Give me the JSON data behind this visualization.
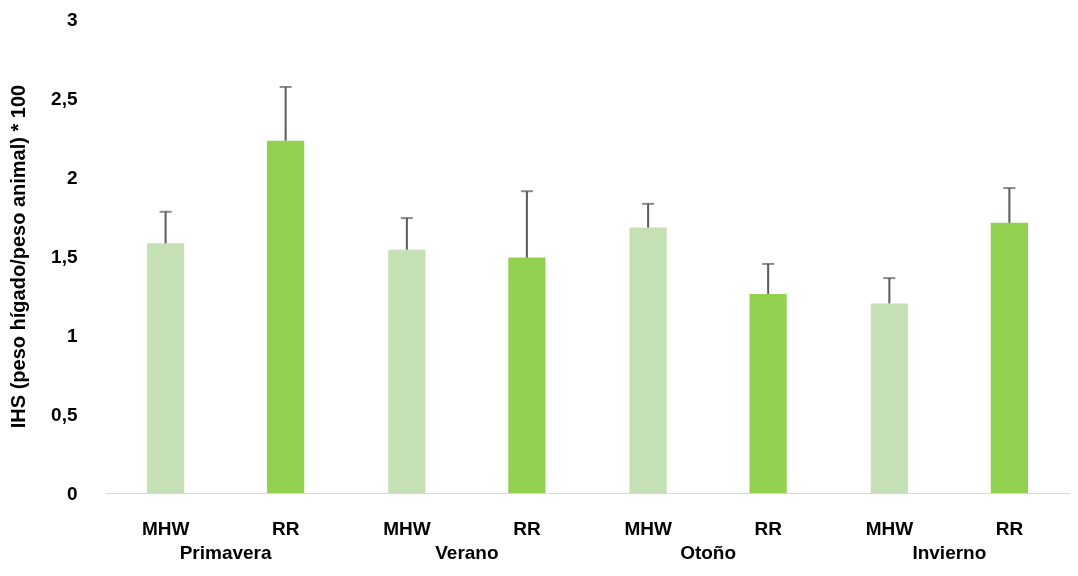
{
  "chart_data": {
    "type": "bar",
    "ylabel": "IHS (peso hígado/peso animal) * 100",
    "categories": [
      "Primavera",
      "Verano",
      "Otoño",
      "Invierno"
    ],
    "series": [
      {
        "name": "MHW",
        "color": "#c5e0b4",
        "values": [
          1.58,
          1.54,
          1.68,
          1.2
        ],
        "errors": [
          [
            1.58,
            1.78
          ],
          [
            1.54,
            1.74
          ],
          [
            1.68,
            1.83
          ],
          [
            1.2,
            1.36
          ]
        ]
      },
      {
        "name": "RR",
        "color": "#92d050",
        "values": [
          2.23,
          1.49,
          1.26,
          1.71
        ],
        "errors": [
          [
            2.23,
            2.57
          ],
          [
            1.49,
            1.91
          ],
          [
            1.26,
            1.45
          ],
          [
            1.71,
            1.93
          ]
        ]
      }
    ],
    "ylim": [
      0,
      3
    ],
    "yticks": [
      0,
      {
        "value": 0.5,
        "label": "0,5"
      },
      1,
      {
        "value": 1.5,
        "label": "1,5"
      },
      2,
      {
        "value": 2.5,
        "label": "2,5"
      },
      3
    ],
    "grid": false,
    "legend": false
  }
}
